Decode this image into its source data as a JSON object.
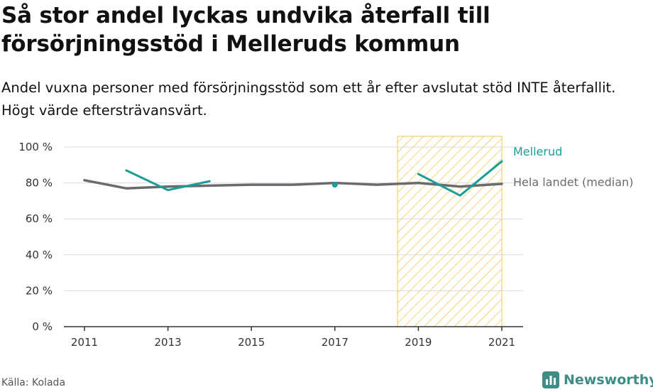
{
  "header": {
    "title": "Så stor andel lyckas undvika återfall till försörjningsstöd i Melleruds kommun",
    "subtitle": "Andel vuxna personer med försörjningsstöd som ett år efter avslutat stöd INTE återfallit. Högt värde eftersträvansvärt."
  },
  "footer": {
    "source": "Källa: Kolada",
    "brand": "Newsworthy",
    "brand_icon": "bar-chart-logo-icon"
  },
  "colors": {
    "mellerud": "#1a9e98",
    "national": "#6b6a6f",
    "highlight": "#f4c542",
    "grid": "#d9d9d9",
    "brand": "#3d8c86"
  },
  "chart_data": {
    "type": "line",
    "x": [
      2011,
      2012,
      2013,
      2014,
      2015,
      2016,
      2017,
      2018,
      2019,
      2020,
      2021
    ],
    "ylim": [
      0,
      100
    ],
    "yticks": [
      0,
      20,
      40,
      60,
      80,
      100
    ],
    "ytick_labels": [
      "0 %",
      "20 %",
      "40 %",
      "60 %",
      "80 %",
      "100 %"
    ],
    "xticks": [
      2011,
      2013,
      2015,
      2017,
      2019,
      2021
    ],
    "xtick_labels": [
      "2011",
      "2013",
      "2015",
      "2017",
      "2019",
      "2021"
    ],
    "grid": true,
    "legend": "direct labels at line ends, right",
    "highlight_range": [
      2018.5,
      2021
    ],
    "series": [
      {
        "name": "Mellerud",
        "color": "#1a9e98",
        "values": [
          null,
          87,
          76,
          81,
          null,
          null,
          79,
          null,
          85,
          73,
          92
        ]
      },
      {
        "name": "Hela landet (median)",
        "color": "#6b6a6f",
        "values": [
          81.5,
          77,
          78,
          78.5,
          79,
          79,
          80,
          79,
          80,
          78,
          79.5
        ]
      }
    ]
  }
}
